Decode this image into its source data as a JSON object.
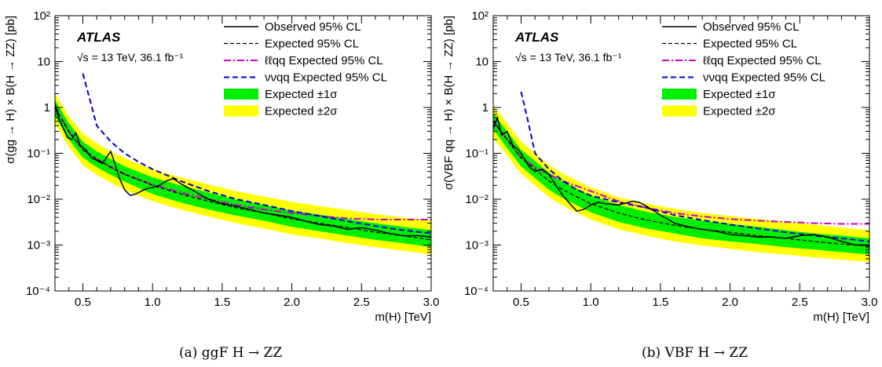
{
  "colors": {
    "band1": "#00ee00",
    "band2": "#ffff00",
    "observed": "#000000",
    "expected": "#000000",
    "llqq": "#cc00cc",
    "vvqq": "#0000dd"
  },
  "chart_data": [
    {
      "type": "line",
      "panel_id": "a",
      "caption": "(a) ggF H → ZZ",
      "experiment": "ATLAS",
      "energy_lumi": "√s = 13 TeV, 36.1 fb⁻¹",
      "xlabel": "m(H) [TeV]",
      "ylabel": "σ(gg → H) × B(H → ZZ) [pb]",
      "xlim": [
        0.3,
        3.0
      ],
      "ylim": [
        0.0001,
        100
      ],
      "yscale": "log",
      "grid": false,
      "legend_position": "top-right",
      "x_ticks": [
        0.5,
        1.0,
        1.5,
        2.0,
        2.5,
        3.0
      ],
      "x_tick_labels": [
        "0.5",
        "1.0",
        "1.5",
        "2.0",
        "2.5",
        "3.0"
      ],
      "y_ticks": [
        0.0001,
        0.001,
        0.01,
        0.1,
        1,
        10,
        100
      ],
      "y_tick_labels": [
        "10⁻⁴",
        "10⁻³",
        "10⁻²",
        "10⁻¹",
        "1",
        "10",
        "10²"
      ],
      "legend": [
        {
          "label": "Observed 95% CL",
          "style": "solid"
        },
        {
          "label": "Expected 95% CL",
          "style": "dashed"
        },
        {
          "label": "ℓℓqq Expected 95% CL",
          "style": "dashdot"
        },
        {
          "label": "ννqq Expected 95% CL",
          "style": "dashed-blue"
        },
        {
          "label": "Expected ±1σ",
          "style": "band1"
        },
        {
          "label": "Expected ±2σ",
          "style": "band2"
        }
      ],
      "series": [
        {
          "name": "Observed 95% CL",
          "x": [
            0.3,
            0.33,
            0.36,
            0.39,
            0.42,
            0.45,
            0.48,
            0.52,
            0.56,
            0.6,
            0.64,
            0.68,
            0.7,
            0.73,
            0.76,
            0.8,
            0.84,
            0.88,
            0.92,
            0.96,
            1.0,
            1.05,
            1.1,
            1.15,
            1.2,
            1.3,
            1.4,
            1.5,
            1.6,
            1.7,
            1.8,
            1.9,
            2.0,
            2.1,
            2.2,
            2.3,
            2.4,
            2.5,
            2.6,
            2.7,
            2.8,
            2.9,
            3.0
          ],
          "y": [
            1.2,
            0.55,
            0.35,
            0.22,
            0.2,
            0.28,
            0.15,
            0.12,
            0.08,
            0.07,
            0.06,
            0.09,
            0.11,
            0.06,
            0.03,
            0.016,
            0.012,
            0.013,
            0.015,
            0.017,
            0.018,
            0.02,
            0.025,
            0.028,
            0.022,
            0.015,
            0.01,
            0.008,
            0.007,
            0.006,
            0.005,
            0.0045,
            0.004,
            0.0033,
            0.0028,
            0.0026,
            0.0022,
            0.0024,
            0.0021,
            0.0018,
            0.0016,
            0.0016,
            0.0015
          ]
        },
        {
          "name": "Expected 95% CL",
          "x": [
            0.3,
            0.4,
            0.5,
            0.6,
            0.7,
            0.8,
            1.0,
            1.2,
            1.4,
            1.6,
            1.8,
            2.0,
            2.2,
            2.4,
            2.6,
            2.8,
            3.0
          ],
          "y": [
            1.0,
            0.3,
            0.12,
            0.075,
            0.05,
            0.035,
            0.02,
            0.013,
            0.009,
            0.0065,
            0.005,
            0.0037,
            0.003,
            0.0024,
            0.0019,
            0.0016,
            0.0013
          ]
        },
        {
          "name": "ℓℓqq Expected 95% CL",
          "x": [
            0.3,
            0.4,
            0.5,
            0.6,
            0.7,
            0.8,
            1.0,
            1.2,
            1.4,
            1.6,
            1.8,
            2.0,
            2.2,
            2.4,
            2.6,
            2.8,
            3.0
          ],
          "y": [
            1.0,
            0.3,
            0.12,
            0.075,
            0.05,
            0.035,
            0.021,
            0.014,
            0.01,
            0.0075,
            0.006,
            0.005,
            0.0043,
            0.0038,
            0.0036,
            0.0036,
            0.0036
          ]
        },
        {
          "name": "ννqq Expected 95% CL",
          "x": [
            0.5,
            0.55,
            0.6,
            0.7,
            0.8,
            0.9,
            1.0,
            1.2,
            1.4,
            1.6,
            1.8,
            2.0,
            2.2,
            2.4,
            2.6,
            2.8,
            3.0
          ],
          "y": [
            5.5,
            1.5,
            0.4,
            0.18,
            0.1,
            0.065,
            0.045,
            0.025,
            0.015,
            0.01,
            0.0075,
            0.0055,
            0.0043,
            0.0033,
            0.0026,
            0.0021,
            0.0018
          ]
        },
        {
          "name": "Expected ±1σ",
          "x": [
            0.3,
            0.4,
            0.5,
            0.6,
            0.7,
            0.8,
            1.0,
            1.2,
            1.4,
            1.6,
            1.8,
            2.0,
            2.2,
            2.4,
            2.6,
            2.8,
            3.0
          ],
          "lower": [
            0.65,
            0.2,
            0.08,
            0.05,
            0.034,
            0.024,
            0.013,
            0.0085,
            0.006,
            0.0044,
            0.0034,
            0.0025,
            0.002,
            0.0016,
            0.0013,
            0.0011,
            0.0009
          ],
          "upper": [
            1.45,
            0.45,
            0.18,
            0.11,
            0.075,
            0.052,
            0.03,
            0.02,
            0.014,
            0.0098,
            0.0075,
            0.0056,
            0.0046,
            0.0037,
            0.003,
            0.0025,
            0.0021
          ]
        },
        {
          "name": "Expected ±2σ",
          "x": [
            0.3,
            0.4,
            0.5,
            0.6,
            0.7,
            0.8,
            1.0,
            1.2,
            1.4,
            1.6,
            1.8,
            2.0,
            2.2,
            2.4,
            2.6,
            2.8,
            3.0
          ],
          "lower": [
            0.45,
            0.14,
            0.055,
            0.034,
            0.023,
            0.016,
            0.009,
            0.006,
            0.0042,
            0.003,
            0.0023,
            0.0017,
            0.0014,
            0.0011,
            0.0009,
            0.00075,
            0.00062
          ],
          "upper": [
            2.0,
            0.65,
            0.27,
            0.165,
            0.11,
            0.078,
            0.045,
            0.03,
            0.021,
            0.015,
            0.0115,
            0.0087,
            0.0071,
            0.0058,
            0.0047,
            0.004,
            0.0034
          ]
        }
      ]
    },
    {
      "type": "line",
      "panel_id": "b",
      "caption": "(b) VBF H → ZZ",
      "experiment": "ATLAS",
      "energy_lumi": "√s = 13 TeV, 36.1 fb⁻¹",
      "xlabel": "m(H) [TeV]",
      "ylabel": "σ(VBF qq → H) × B(H → ZZ) [pb]",
      "xlim": [
        0.3,
        3.0
      ],
      "ylim": [
        0.0001,
        100
      ],
      "yscale": "log",
      "grid": false,
      "legend_position": "top-right",
      "x_ticks": [
        0.5,
        1.0,
        1.5,
        2.0,
        2.5,
        3.0
      ],
      "x_tick_labels": [
        "0.5",
        "1.0",
        "1.5",
        "2.0",
        "2.5",
        "3.0"
      ],
      "y_ticks": [
        0.0001,
        0.001,
        0.01,
        0.1,
        1,
        10,
        100
      ],
      "y_tick_labels": [
        "10⁻⁴",
        "10⁻³",
        "10⁻²",
        "10⁻¹",
        "1",
        "10",
        "10²"
      ],
      "legend": [
        {
          "label": "Observed 95% CL",
          "style": "solid"
        },
        {
          "label": "Expected 95% CL",
          "style": "dashed"
        },
        {
          "label": "ℓℓqq Expected 95% CL",
          "style": "dashdot"
        },
        {
          "label": "ννqq Expected 95% CL",
          "style": "dashed-blue"
        },
        {
          "label": "Expected ±1σ",
          "style": "band1"
        },
        {
          "label": "Expected ±2σ",
          "style": "band2"
        }
      ],
      "series": [
        {
          "name": "Observed 95% CL",
          "x": [
            0.3,
            0.33,
            0.36,
            0.4,
            0.44,
            0.48,
            0.52,
            0.56,
            0.6,
            0.65,
            0.7,
            0.75,
            0.8,
            0.85,
            0.9,
            0.95,
            1.0,
            1.05,
            1.1,
            1.2,
            1.3,
            1.35,
            1.4,
            1.5,
            1.6,
            1.7,
            1.8,
            1.9,
            2.0,
            2.1,
            2.2,
            2.3,
            2.4,
            2.5,
            2.6,
            2.7,
            2.8,
            2.9,
            3.0
          ],
          "y": [
            0.35,
            0.6,
            0.25,
            0.3,
            0.15,
            0.12,
            0.08,
            0.05,
            0.04,
            0.045,
            0.035,
            0.02,
            0.012,
            0.008,
            0.0055,
            0.006,
            0.0075,
            0.0085,
            0.008,
            0.0075,
            0.009,
            0.0085,
            0.007,
            0.0045,
            0.003,
            0.0025,
            0.0022,
            0.002,
            0.0017,
            0.0016,
            0.0015,
            0.0015,
            0.0014,
            0.0016,
            0.0017,
            0.0015,
            0.0012,
            0.001,
            0.001
          ]
        },
        {
          "name": "Expected 95% CL",
          "x": [
            0.3,
            0.4,
            0.5,
            0.6,
            0.7,
            0.8,
            1.0,
            1.2,
            1.4,
            1.6,
            1.8,
            2.0,
            2.2,
            2.4,
            2.6,
            2.8,
            3.0
          ],
          "y": [
            0.5,
            0.2,
            0.08,
            0.045,
            0.025,
            0.016,
            0.008,
            0.005,
            0.0035,
            0.0027,
            0.0022,
            0.0019,
            0.0016,
            0.0014,
            0.0012,
            0.00105,
            0.00095
          ]
        },
        {
          "name": "ℓℓqq Expected 95% CL",
          "x": [
            0.3,
            0.4,
            0.5,
            0.6,
            0.7,
            0.8,
            1.0,
            1.2,
            1.4,
            1.6,
            1.8,
            2.0,
            2.2,
            2.4,
            2.6,
            2.8,
            3.0
          ],
          "y": [
            0.5,
            0.2,
            0.08,
            0.05,
            0.035,
            0.025,
            0.015,
            0.009,
            0.0065,
            0.005,
            0.0042,
            0.0037,
            0.0034,
            0.0032,
            0.003,
            0.0029,
            0.0029
          ]
        },
        {
          "name": "ννqq Expected 95% CL",
          "x": [
            0.5,
            0.55,
            0.6,
            0.7,
            0.8,
            0.9,
            1.0,
            1.2,
            1.4,
            1.6,
            1.8,
            2.0,
            2.2,
            2.4,
            2.6,
            2.8,
            3.0
          ],
          "y": [
            2.2,
            0.5,
            0.1,
            0.045,
            0.025,
            0.016,
            0.012,
            0.0085,
            0.0065,
            0.0045,
            0.0035,
            0.0028,
            0.0023,
            0.0019,
            0.0016,
            0.0014,
            0.0012
          ]
        },
        {
          "name": "Expected ±1σ",
          "x": [
            0.3,
            0.4,
            0.5,
            0.6,
            0.7,
            0.8,
            1.0,
            1.2,
            1.4,
            1.6,
            1.8,
            2.0,
            2.2,
            2.4,
            2.6,
            2.8,
            3.0
          ],
          "lower": [
            0.33,
            0.13,
            0.052,
            0.029,
            0.016,
            0.0105,
            0.0052,
            0.0032,
            0.0023,
            0.0018,
            0.0014,
            0.0012,
            0.00105,
            0.0009,
            0.0008,
            0.0007,
            0.00062
          ],
          "upper": [
            0.75,
            0.3,
            0.12,
            0.068,
            0.038,
            0.024,
            0.012,
            0.0075,
            0.0053,
            0.0041,
            0.0034,
            0.0029,
            0.0025,
            0.0021,
            0.0018,
            0.0016,
            0.0014
          ]
        },
        {
          "name": "Expected ±2σ",
          "x": [
            0.3,
            0.4,
            0.5,
            0.6,
            0.7,
            0.8,
            1.0,
            1.2,
            1.4,
            1.6,
            1.8,
            2.0,
            2.2,
            2.4,
            2.6,
            2.8,
            3.0
          ],
          "lower": [
            0.22,
            0.09,
            0.036,
            0.02,
            0.011,
            0.0072,
            0.0036,
            0.0022,
            0.0016,
            0.0012,
            0.00098,
            0.00083,
            0.0007,
            0.00062,
            0.00054,
            0.00048,
            0.00043
          ],
          "upper": [
            1.1,
            0.45,
            0.18,
            0.1,
            0.056,
            0.036,
            0.018,
            0.011,
            0.008,
            0.0062,
            0.005,
            0.0043,
            0.0037,
            0.0032,
            0.0028,
            0.0024,
            0.0021
          ]
        }
      ]
    }
  ]
}
